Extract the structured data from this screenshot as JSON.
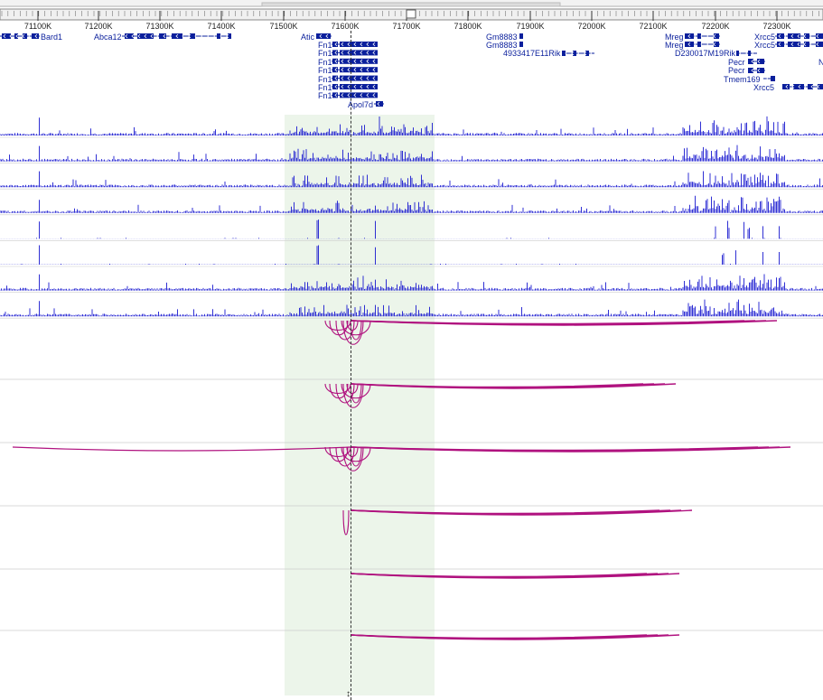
{
  "colors": {
    "signal": "#1a1ad0",
    "arc": "#b0127f",
    "gene": "#0a1f9c",
    "highlight": "#e4efe0",
    "separator": "#cccccc"
  },
  "ruler": {
    "center_marker": "↕",
    "ticks": [
      "71100K",
      "71200K",
      "71300K",
      "71400K",
      "71500K",
      "71600K",
      "71700K",
      "71800K",
      "71900K",
      "72000K",
      "72100K",
      "72200K",
      "72300K"
    ]
  },
  "genes": {
    "bard1": "Bard1",
    "abca12": "Abca12",
    "atic": "Atic",
    "fn1": [
      "Fn1",
      "Fn1",
      "Fn1",
      "Fn1",
      "Fn1",
      "Fn1",
      "Fn1"
    ],
    "apol7d": "Apol7d",
    "gm8883": [
      "Gm8883",
      "Gm8883"
    ],
    "rik4933": "4933417E11Rik",
    "mreg": [
      "Mreg",
      "Mreg"
    ],
    "d230017": "D230017M19Rik",
    "pecr": [
      "Pecr",
      "Pecr"
    ],
    "tmem169": "Tmem169",
    "xrcc5": [
      "Xrcc5",
      "Xrcc5",
      "Xrcc5"
    ],
    "m_trunc": "N"
  },
  "signal_tracks": 8,
  "arc_tracks": 6
}
